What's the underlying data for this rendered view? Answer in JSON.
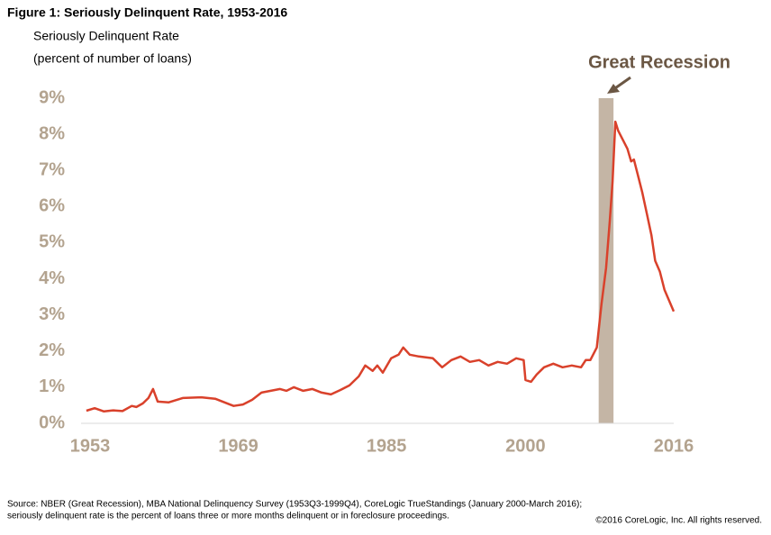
{
  "chart_data": {
    "type": "line",
    "title": "Figure 1:  Seriously Delinquent Rate, 1953-2016",
    "y_label": [
      "Seriously Delinquent Rate",
      "(percent of number of loans)"
    ],
    "annotation": "Great Recession",
    "recession": {
      "start": 2007.9,
      "end": 2009.5,
      "color": "#c4b5a5"
    },
    "source": [
      "Source: NBER  (Great Recession), MBA National Delinquency Survey (1953Q3-1999Q4), CoreLogic TrueStandings (January 2000-March 2016);",
      "seriously delinquent rate is the percent of loans three or more months delinquent or in foreclosure proceedings."
    ],
    "copyright": "©2016 CoreLogic, Inc. All rights reserved.",
    "xlim": [
      1953,
      2016
    ],
    "xticks": [
      1953,
      1969,
      1985,
      2000,
      2016
    ],
    "ylim": [
      0,
      9
    ],
    "yticks": [
      {
        "value": 0,
        "label": "0%"
      },
      {
        "value": 1,
        "label": "1%"
      },
      {
        "value": 2,
        "label": "2%"
      },
      {
        "value": 3,
        "label": "3%"
      },
      {
        "value": 4,
        "label": "4%"
      },
      {
        "value": 5,
        "label": "5%"
      },
      {
        "value": 6,
        "label": "6%"
      },
      {
        "value": 7,
        "label": "7%"
      },
      {
        "value": 8,
        "label": "8%"
      },
      {
        "value": 9,
        "label": "9%"
      }
    ],
    "x": [
      1952.6,
      1953.5,
      1954.5,
      1955.5,
      1956.5,
      1957.5,
      1958,
      1958.7,
      1959.3,
      1959.8,
      1960.3,
      1961.5,
      1963,
      1965,
      1966.5,
      1967.5,
      1968.5,
      1969.5,
      1970.5,
      1971.5,
      1972.5,
      1973.5,
      1974.2,
      1975,
      1976,
      1977,
      1978,
      1979,
      1980,
      1981,
      1982,
      1982.7,
      1983.5,
      1984,
      1984.6,
      1985.5,
      1986.3,
      1986.8,
      1987.5,
      1988.5,
      1990,
      1991,
      1992,
      1993,
      1994,
      1995,
      1996,
      1997,
      1998,
      1999,
      1999.8,
      2000,
      2000.6,
      2001.2,
      2002,
      2003,
      2004,
      2005,
      2006,
      2006.5,
      2007,
      2007.7,
      2008.2,
      2008.7,
      2009.1,
      2009.4,
      2009.7,
      2010,
      2010.4,
      2011,
      2011.4,
      2011.7,
      2012.1,
      2012.6,
      2013.1,
      2013.6,
      2014,
      2014.5,
      2015,
      2016
    ],
    "series": [
      {
        "name": "Seriously Delinquent Rate",
        "color": "#d9412b",
        "values": [
          0.35,
          0.42,
          0.33,
          0.36,
          0.34,
          0.48,
          0.45,
          0.55,
          0.7,
          0.95,
          0.6,
          0.58,
          0.7,
          0.72,
          0.68,
          0.58,
          0.48,
          0.52,
          0.65,
          0.85,
          0.9,
          0.95,
          0.9,
          1.0,
          0.9,
          0.95,
          0.85,
          0.8,
          0.92,
          1.05,
          1.3,
          1.6,
          1.45,
          1.6,
          1.4,
          1.8,
          1.9,
          2.1,
          1.9,
          1.85,
          1.8,
          1.55,
          1.75,
          1.85,
          1.7,
          1.75,
          1.6,
          1.7,
          1.65,
          1.8,
          1.75,
          1.2,
          1.15,
          1.35,
          1.55,
          1.65,
          1.55,
          1.6,
          1.55,
          1.75,
          1.75,
          2.1,
          3.3,
          4.3,
          5.6,
          6.7,
          8.35,
          8.1,
          7.9,
          7.6,
          7.25,
          7.3,
          6.9,
          6.4,
          5.8,
          5.2,
          4.5,
          4.2,
          3.7,
          3.1
        ]
      }
    ]
  }
}
